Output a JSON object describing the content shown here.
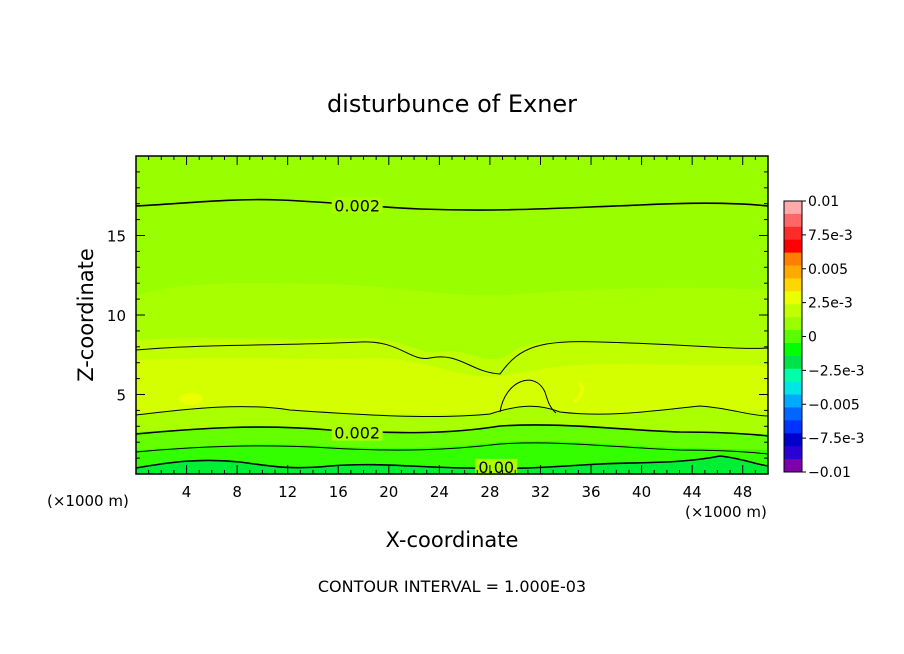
{
  "chart_data": {
    "type": "heatmap",
    "title": "disturbunce of Exner",
    "xlabel": "X-coordinate",
    "ylabel": "Z-coordinate",
    "xlim": [
      0,
      50
    ],
    "ylim": [
      0,
      20
    ],
    "x_ticks": [
      4,
      8,
      12,
      16,
      20,
      24,
      28,
      32,
      36,
      40,
      44,
      48
    ],
    "y_ticks": [
      5,
      10,
      15
    ],
    "x_unit": "(×1000 m)",
    "y_unit": "(×1000 m)",
    "footer": "CONTOUR INTERVAL = 1.000E-03",
    "contour_labels": [
      {
        "text": "0.002",
        "x": 17.5,
        "z": 16.9
      },
      {
        "text": "0.002",
        "x": 17.5,
        "z": 2.6
      },
      {
        "text": "0.00",
        "x": 28.5,
        "z": 0.45
      }
    ],
    "colorbar": {
      "tick_labels": [
        "0.01",
        "7.5e-3",
        "0.005",
        "2.5e-3",
        "0",
        "−2.5e-3",
        "−0.005",
        "−7.5e-3",
        "−0.01"
      ],
      "colors": [
        "#ffaaaa",
        "#ff6666",
        "#ff2a2a",
        "#ff0000",
        "#ff7f00",
        "#ffaa00",
        "#ffd700",
        "#eaff00",
        "#bfff00",
        "#99ff00",
        "#55ff00",
        "#00ff00",
        "#00e24a",
        "#00ffaa",
        "#00e6e6",
        "#00aaff",
        "#0066ff",
        "#0033ff",
        "#0000cc",
        "#2a00d4",
        "#7f00aa"
      ]
    },
    "fields": [
      {
        "name": "region_upper_high",
        "value": 0.002,
        "color": "#99ff00"
      },
      {
        "name": "region_upper_mid",
        "value": 0.0023,
        "color": "#a8ff00"
      },
      {
        "name": "region_mid",
        "value": 0.0026,
        "color": "#bfff00"
      },
      {
        "name": "region_core",
        "value": 0.003,
        "color": "#d4ff00"
      },
      {
        "name": "region_lower_1",
        "value": 0.0022,
        "color": "#aaff00"
      },
      {
        "name": "region_lower_2",
        "value": 0.0016,
        "color": "#66ff00"
      },
      {
        "name": "region_lower_3",
        "value": 0.001,
        "color": "#33ff00"
      },
      {
        "name": "region_surface",
        "value": 0.0003,
        "color": "#00ee33"
      }
    ]
  }
}
